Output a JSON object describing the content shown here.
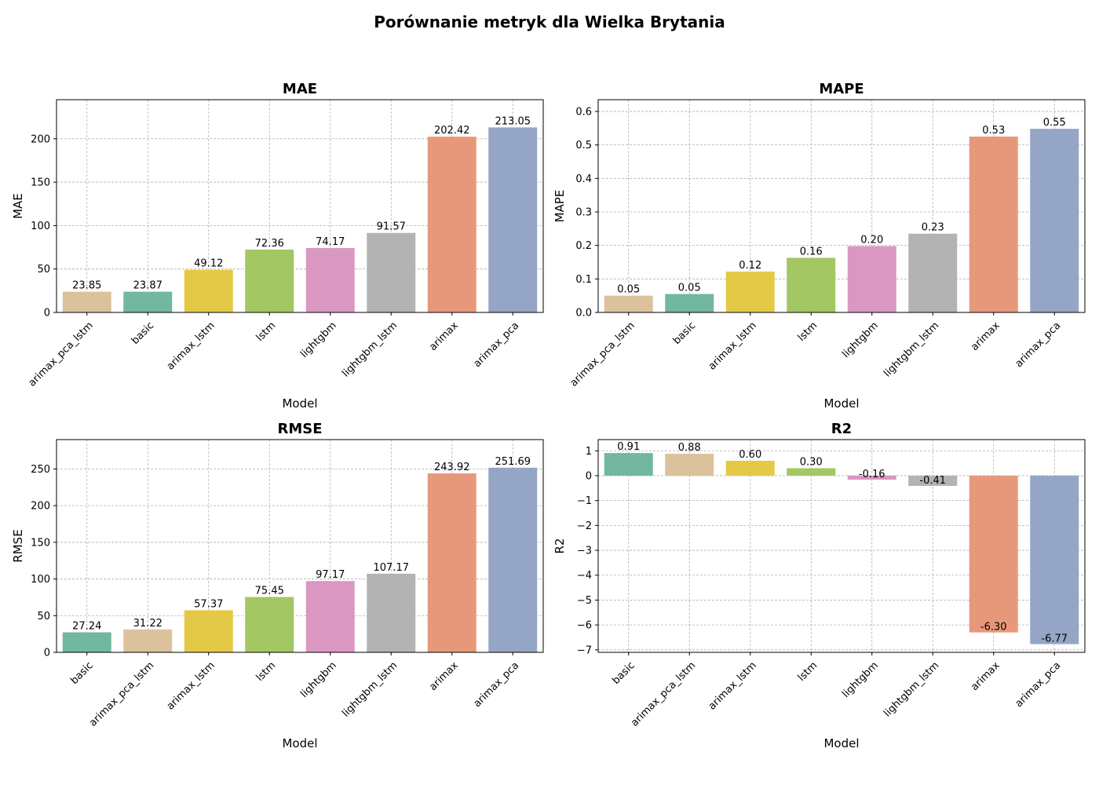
{
  "figure": {
    "title": "Porównanie metryk dla Wielka Brytania"
  },
  "colors": {
    "arimax_pca_lstm": "#dcc29c",
    "basic": "#72b7a1",
    "arimax_lstm": "#e4c947",
    "lstm": "#a2c763",
    "lightgbm": "#da97c1",
    "lightgbm_lstm": "#b3b3b3",
    "arimax": "#e8987a",
    "arimax_pca": "#95a5c5",
    "grid": "#b0b0b0"
  },
  "chart_data": [
    {
      "type": "bar",
      "title": "MAE",
      "xlabel": "Model",
      "ylabel": "MAE",
      "ylim": [
        0,
        245
      ],
      "yticks": [
        0,
        50,
        100,
        150,
        200
      ],
      "categories": [
        "arimax_pca_lstm",
        "basic",
        "arimax_lstm",
        "lstm",
        "lightgbm",
        "lightgbm_lstm",
        "arimax",
        "arimax_pca"
      ],
      "values": [
        23.85,
        23.87,
        49.12,
        72.36,
        74.17,
        91.57,
        202.42,
        213.05
      ],
      "labels": [
        "23.85",
        "23.87",
        "49.12",
        "72.36",
        "74.17",
        "91.57",
        "202.42",
        "213.05"
      ],
      "grid": true
    },
    {
      "type": "bar",
      "title": "MAPE",
      "xlabel": "Model",
      "ylabel": "MAPE",
      "ylim": [
        0,
        0.635
      ],
      "yticks": [
        0.0,
        0.1,
        0.2,
        0.3,
        0.4,
        0.5,
        0.6
      ],
      "ytick_labels": [
        "0.0",
        "0.1",
        "0.2",
        "0.3",
        "0.4",
        "0.5",
        "0.6"
      ],
      "categories": [
        "arimax_pca_lstm",
        "basic",
        "arimax_lstm",
        "lstm",
        "lightgbm",
        "lightgbm_lstm",
        "arimax",
        "arimax_pca"
      ],
      "values": [
        0.05,
        0.055,
        0.122,
        0.163,
        0.198,
        0.235,
        0.525,
        0.548
      ],
      "labels": [
        "0.05",
        "0.05",
        "0.12",
        "0.16",
        "0.20",
        "0.23",
        "0.53",
        "0.55"
      ],
      "grid": true
    },
    {
      "type": "bar",
      "title": "RMSE",
      "xlabel": "Model",
      "ylabel": "RMSE",
      "ylim": [
        0,
        290
      ],
      "yticks": [
        0,
        50,
        100,
        150,
        200,
        250
      ],
      "categories": [
        "basic",
        "arimax_pca_lstm",
        "arimax_lstm",
        "lstm",
        "lightgbm",
        "lightgbm_lstm",
        "arimax",
        "arimax_pca"
      ],
      "values": [
        27.24,
        31.22,
        57.37,
        75.45,
        97.17,
        107.17,
        243.92,
        251.69
      ],
      "labels": [
        "27.24",
        "31.22",
        "57.37",
        "75.45",
        "97.17",
        "107.17",
        "243.92",
        "251.69"
      ],
      "grid": true
    },
    {
      "type": "bar",
      "title": "R2",
      "xlabel": "Model",
      "ylabel": "R2",
      "ylim": [
        -7.1,
        1.45
      ],
      "yticks": [
        -7,
        -6,
        -5,
        -4,
        -3,
        -2,
        -1,
        0,
        1
      ],
      "ytick_labels": [
        "−7",
        "−6",
        "−5",
        "−4",
        "−3",
        "−2",
        "−1",
        "0",
        "1"
      ],
      "categories": [
        "basic",
        "arimax_pca_lstm",
        "arimax_lstm",
        "lstm",
        "lightgbm",
        "lightgbm_lstm",
        "arimax",
        "arimax_pca"
      ],
      "values": [
        0.91,
        0.88,
        0.6,
        0.3,
        -0.16,
        -0.41,
        -6.3,
        -6.77
      ],
      "labels": [
        "0.91",
        "0.88",
        "0.60",
        "0.30",
        "-0.16",
        "-0.41",
        "-6.30",
        "-6.77"
      ],
      "grid": true
    }
  ]
}
